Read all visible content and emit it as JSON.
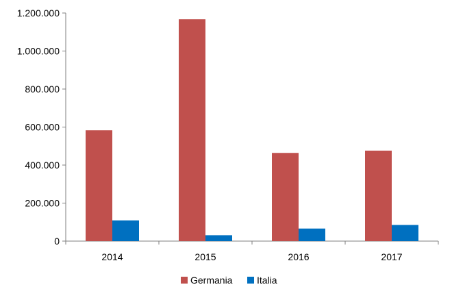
{
  "chart_data": {
    "type": "bar",
    "categories": [
      "2014",
      "2015",
      "2016",
      "2017"
    ],
    "series": [
      {
        "name": "Germania",
        "values": [
          583000,
          1167000,
          464000,
          476000
        ],
        "color": "#c0504d"
      },
      {
        "name": "Italia",
        "values": [
          109000,
          31000,
          66000,
          85000
        ],
        "color": "#0070c0"
      }
    ],
    "yticks": [
      0,
      200000,
      400000,
      600000,
      800000,
      1000000,
      1200000
    ],
    "ytick_labels": [
      "0",
      "200.000",
      "400.000",
      "600.000",
      "800.000",
      "1.000.000",
      "1.200.000"
    ],
    "ylim": [
      0,
      1200000
    ],
    "grid": false,
    "legend": "bottom"
  }
}
